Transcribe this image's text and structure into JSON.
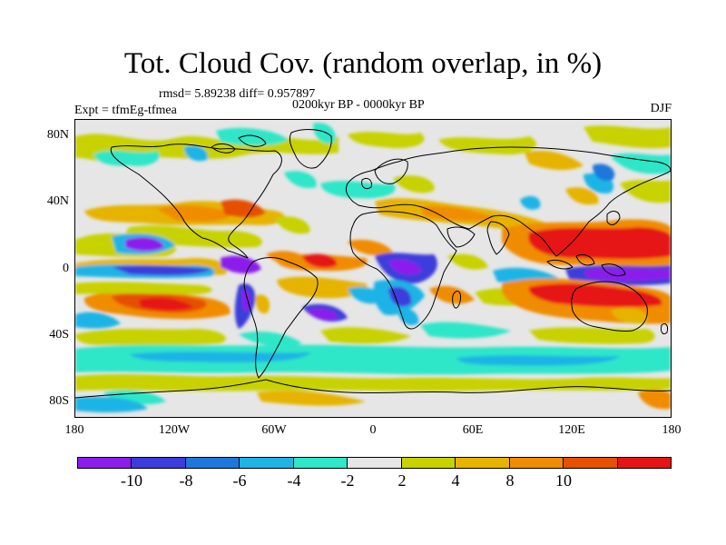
{
  "title": "Tot. Cloud Cov. (random overlap, in %)",
  "stats": "rmsd= 5.89238  diff= 0.957897",
  "period": "0200kyr BP - 0000kyr BP",
  "experiment": "Expt = tfmEg-tfmea",
  "season": "DJF",
  "map": {
    "projection": "cylindrical equidistant",
    "lon_range": [
      -180,
      180
    ],
    "lat_range": [
      -90,
      90
    ],
    "background_color": "#e6e6e6",
    "y_ticks": [
      "80N",
      "40N",
      "0",
      "40S",
      "80S"
    ],
    "x_ticks": [
      "180",
      "120W",
      "60W",
      "0",
      "60E",
      "120E",
      "180"
    ]
  },
  "colorbar": {
    "colors": [
      "#8c1eeb",
      "#3c3cdc",
      "#1e78dc",
      "#1eb4e6",
      "#2ee6c8",
      "#e6e6e6",
      "#c8d200",
      "#e6b400",
      "#f08c00",
      "#e65000",
      "#e61414"
    ],
    "labels": [
      "-10",
      "-8",
      "-6",
      "-4",
      "-2",
      "2",
      "4",
      "8",
      "10"
    ]
  }
}
